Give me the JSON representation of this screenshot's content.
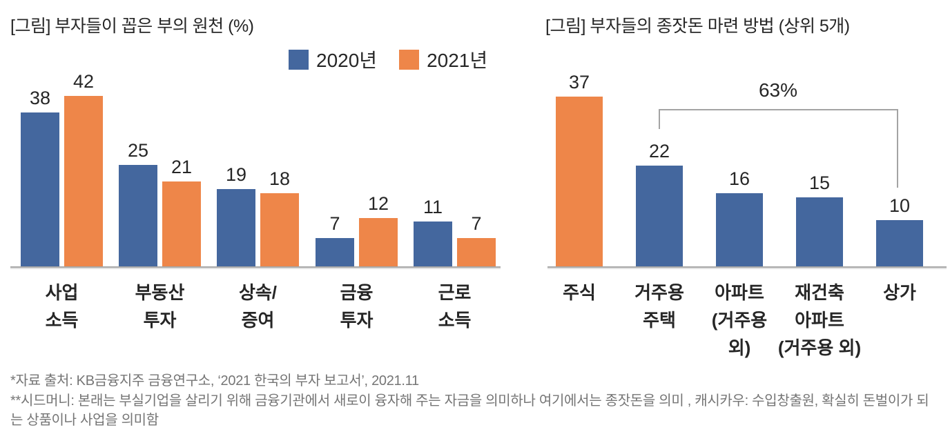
{
  "page": {
    "background": "#ffffff"
  },
  "colors": {
    "series_2020_blue": "#44679E",
    "series_2021_orange": "#EE8649",
    "axis_gray": "#A8A8A8",
    "bracket_gray": "#A3A3A3",
    "text_dark": "#262626",
    "footnote_gray": "#757575"
  },
  "left_chart": {
    "title": "[그림] 부자들이 꼽은 부의 원천 (%)"
  },
  "right_chart": {
    "title": "[그림] 부자들의 종잣돈 마련 방법 (상위 5개)",
    "bracket_label": "63%"
  },
  "chart_data": [
    {
      "id": "wealth-sources",
      "type": "bar",
      "title": "[그림] 부자들이 꼽은 부의 원천 (%)",
      "unit": "%",
      "categories": [
        "사업 소득",
        "부동산 투자",
        "상속/증여",
        "금융 투자",
        "근로 소득"
      ],
      "category_lines": [
        [
          "사업",
          "소득"
        ],
        [
          "부동산",
          "투자"
        ],
        [
          "상속/",
          "증여"
        ],
        [
          "금융",
          "투자"
        ],
        [
          "근로",
          "소득"
        ]
      ],
      "series": [
        {
          "name": "2020년",
          "color": "#44679E",
          "values": [
            38,
            25,
            19,
            7,
            11
          ]
        },
        {
          "name": "2021년",
          "color": "#EE8649",
          "values": [
            42,
            21,
            18,
            12,
            7
          ]
        }
      ],
      "ylim": [
        0,
        45
      ],
      "grid": false,
      "legend_position": "top-right",
      "value_labels": true,
      "xlabel": "",
      "ylabel": ""
    },
    {
      "id": "seed-money",
      "type": "bar",
      "title": "[그림] 부자들의 종잣돈 마련 방법 (상위 5개)",
      "categories": [
        "주식",
        "거주용 주택",
        "아파트 (거주용 외)",
        "재건축 아파트 (거주용 외)",
        "상가"
      ],
      "category_lines": [
        [
          "주식"
        ],
        [
          "거주용",
          "주택"
        ],
        [
          "아파트",
          "(거주용",
          "외)"
        ],
        [
          "재건축",
          "아파트",
          "(거주용 외)"
        ],
        [
          "상가"
        ]
      ],
      "values": [
        37,
        22,
        16,
        15,
        10
      ],
      "bar_colors": [
        "#EE8649",
        "#44679E",
        "#44679E",
        "#44679E",
        "#44679E"
      ],
      "annotation": {
        "label": "63%",
        "from_index": 1,
        "to_index": 4
      },
      "ylim": [
        0,
        40
      ],
      "grid": false,
      "value_labels": true,
      "xlabel": "",
      "ylabel": ""
    }
  ],
  "footnotes": [
    "*자료 출처: KB금융지주 금융연구소, ‘2021 한국의 부자 보고서’, 2021.11",
    "**시드머니: 본래는 부실기업을 살리기 위해 금융기관에서 새로이 융자해 주는 자금을 의미하나 여기에서는 종잣돈을 의미 , 캐시카우: 수입창출원, 확실히 돈벌이가 되는 상품이나 사업을 의미함"
  ]
}
